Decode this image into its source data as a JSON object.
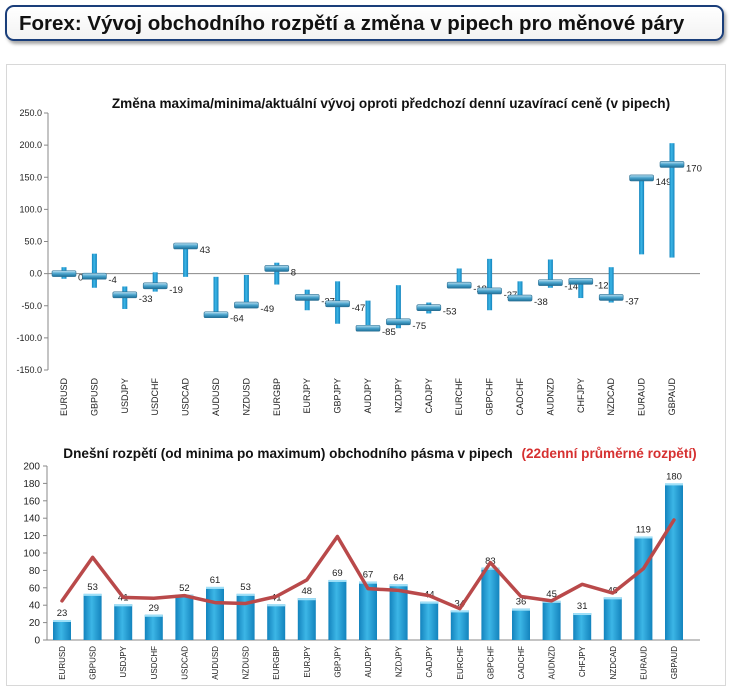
{
  "header": {
    "title": "Forex: Vývoj obchodního rozpětí a změna v pipech pro měnové páry"
  },
  "colors": {
    "bar": "#1f9bd3",
    "bar_light": "#7fd3f3",
    "marker": "#2b7fa8",
    "line": "#b9494a",
    "title_accent": "#d63030"
  },
  "chart_data": [
    {
      "type": "bar",
      "title": "Změna maxima/minima/aktuální vývoj oproti předchozí denní uzavírací ceně (v pipech)",
      "ylim": [
        -150,
        250
      ],
      "yticks": [
        "250.0",
        "200.0",
        "150.0",
        "100.0",
        "50.0",
        "0.0",
        "-50.0",
        "-100.0",
        "-150.0"
      ],
      "ytick_values": [
        250,
        200,
        150,
        100,
        50,
        0,
        -50,
        -100,
        -150
      ],
      "grid": false,
      "categories": [
        "EURUSD",
        "GBPUSD",
        "USDJPY",
        "USDCHF",
        "USDCAD",
        "AUDUSD",
        "NZDUSD",
        "EURGBP",
        "EURJPY",
        "GBPJPY",
        "AUDJPY",
        "NZDJPY",
        "CADJPY",
        "EURCHF",
        "GBPCHF",
        "CADCHF",
        "AUDNZD",
        "CHFJPY",
        "NZDCAD",
        "EURAUD",
        "GBPAUD"
      ],
      "high": [
        10,
        31,
        -20,
        2,
        45,
        -5,
        -2,
        17,
        -25,
        -12,
        -42,
        -18,
        -45,
        8,
        23,
        -12,
        22,
        -8,
        10,
        150,
        203
      ],
      "low": [
        -8,
        -22,
        -55,
        -28,
        -5,
        -67,
        -52,
        -17,
        -57,
        -78,
        -90,
        -85,
        -62,
        -23,
        -57,
        -42,
        -22,
        -38,
        -45,
        30,
        25
      ],
      "current": [
        0,
        -4,
        -33,
        -19,
        43,
        -64,
        -49,
        8,
        -37,
        -47,
        -85,
        -75,
        -53,
        -18,
        -27,
        -38,
        -14,
        -12,
        -37,
        149,
        170
      ],
      "labels": [
        "0",
        "-4",
        "-33",
        "-19",
        "43",
        "-64",
        "-49",
        "8",
        "-37",
        "-47",
        "-85",
        "-75",
        "-53",
        "-18",
        "-27",
        "-38",
        "-14",
        "-12",
        "-37",
        "149",
        "170"
      ]
    },
    {
      "type": "bar",
      "title": "Dnešní rozpětí (od minima po maximum) obchodního pásma v pipech",
      "title_accent": "(22denní průměrné rozpětí)",
      "ylim": [
        0,
        200
      ],
      "yticks": [
        "200",
        "180",
        "160",
        "140",
        "120",
        "100",
        "80",
        "60",
        "40",
        "20",
        "0"
      ],
      "ytick_values": [
        200,
        180,
        160,
        140,
        120,
        100,
        80,
        60,
        40,
        20,
        0
      ],
      "grid": false,
      "categories": [
        "EURUSD",
        "GBPUSD",
        "USDJPY",
        "USDCHF",
        "USDCAD",
        "AUDUSD",
        "NZDUSD",
        "EURGBP",
        "EURJPY",
        "GBPJPY",
        "AUDJPY",
        "NZDJPY",
        "CADJPY",
        "EURCHF",
        "GBPCHF",
        "CADCHF",
        "AUDNZD",
        "CHFJPY",
        "NZDCAD",
        "EURAUD",
        "GBPAUD"
      ],
      "values": [
        23,
        53,
        41,
        29,
        52,
        61,
        53,
        41,
        48,
        69,
        67,
        64,
        44,
        34,
        83,
        36,
        45,
        31,
        49,
        119,
        180
      ],
      "value_labels": [
        "23",
        "53",
        "41",
        "29",
        "52",
        "61",
        "53",
        "41",
        "48",
        "69",
        "67",
        "64",
        "44",
        "34",
        "83",
        "36",
        "45",
        "31",
        "49",
        "119",
        "180"
      ],
      "average": [
        45,
        95,
        49,
        48,
        51,
        43,
        42,
        50,
        69,
        119,
        59,
        57,
        51,
        36,
        89,
        50,
        45,
        64,
        54,
        82,
        138
      ]
    }
  ]
}
